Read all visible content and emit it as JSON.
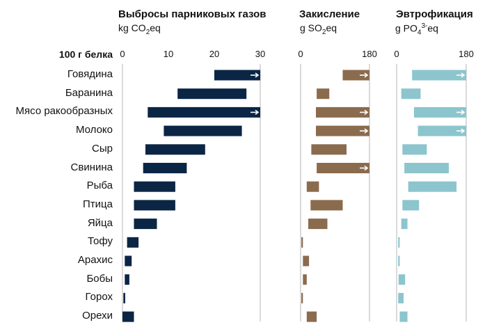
{
  "row_header": "100 г белка",
  "chart_data": [
    {
      "type": "bar",
      "title": "Выбросы парниковых газов",
      "unit_main": "kg CO",
      "unit_sub": "2",
      "unit_sup": "",
      "unit_tail": "eq",
      "xlim": [
        0,
        30
      ],
      "xticks": [
        0,
        10,
        20,
        30
      ],
      "color": "#0b2545",
      "categories": [
        "Говядина",
        "Баранина",
        "Мясо ракообразных",
        "Молоко",
        "Сыр",
        "Свинина",
        "Рыба",
        "Птица",
        "Яйца",
        "Тофу",
        "Арахис",
        "Бобы",
        "Горох",
        "Орехи"
      ],
      "ranges": [
        [
          20,
          30
        ],
        [
          12,
          27
        ],
        [
          5.5,
          30
        ],
        [
          9,
          26
        ],
        [
          5,
          18
        ],
        [
          4.5,
          14
        ],
        [
          2.5,
          11.5
        ],
        [
          2.5,
          11.5
        ],
        [
          2.5,
          7.5
        ],
        [
          1,
          3.5
        ],
        [
          0.5,
          2
        ],
        [
          0.5,
          1.5
        ],
        [
          0.2,
          0.6
        ],
        [
          0,
          2.5
        ]
      ],
      "exceeds_axis": [
        true,
        false,
        true,
        false,
        false,
        false,
        false,
        false,
        false,
        false,
        false,
        false,
        false,
        false
      ]
    },
    {
      "type": "bar",
      "title": "Закисление",
      "unit_main": "g SO",
      "unit_sub": "2",
      "unit_sup": "",
      "unit_tail": "eq",
      "xlim": [
        0,
        180
      ],
      "xticks": [
        0,
        180
      ],
      "color": "#8b6b4e",
      "categories": [
        "Говядина",
        "Баранина",
        "Мясо ракообразных",
        "Молоко",
        "Сыр",
        "Свинина",
        "Рыба",
        "Птица",
        "Яйца",
        "Тофу",
        "Арахис",
        "Бобы",
        "Горох",
        "Орехи"
      ],
      "ranges": [
        [
          110,
          180
        ],
        [
          42,
          75
        ],
        [
          40,
          180
        ],
        [
          40,
          180
        ],
        [
          28,
          120
        ],
        [
          42,
          180
        ],
        [
          16,
          48
        ],
        [
          26,
          110
        ],
        [
          20,
          70
        ],
        [
          2,
          6
        ],
        [
          6,
          22
        ],
        [
          6,
          16
        ],
        [
          2,
          6
        ],
        [
          16,
          42
        ]
      ],
      "exceeds_axis": [
        true,
        false,
        true,
        true,
        false,
        true,
        false,
        false,
        false,
        false,
        false,
        false,
        false,
        false
      ]
    },
    {
      "type": "bar",
      "title": "Эвтрофикация",
      "unit_main": "g PO",
      "unit_sub": "4",
      "unit_sup": "3-",
      "unit_tail": "eq",
      "xlim": [
        0,
        180
      ],
      "xticks": [
        0,
        180
      ],
      "color": "#8cc5cd",
      "categories": [
        "Говядина",
        "Баранина",
        "Мясо ракообразных",
        "Молоко",
        "Сыр",
        "Свинина",
        "Рыба",
        "Птица",
        "Яйца",
        "Тофу",
        "Арахис",
        "Бобы",
        "Горох",
        "Орехи"
      ],
      "ranges": [
        [
          40,
          180
        ],
        [
          12,
          62
        ],
        [
          45,
          180
        ],
        [
          55,
          180
        ],
        [
          15,
          78
        ],
        [
          20,
          135
        ],
        [
          30,
          155
        ],
        [
          15,
          58
        ],
        [
          12,
          28
        ],
        [
          4,
          8
        ],
        [
          4,
          8
        ],
        [
          5,
          22
        ],
        [
          4,
          18
        ],
        [
          8,
          28
        ]
      ],
      "exceeds_axis": [
        true,
        false,
        true,
        true,
        false,
        false,
        false,
        false,
        false,
        false,
        false,
        false,
        false,
        false
      ]
    }
  ]
}
